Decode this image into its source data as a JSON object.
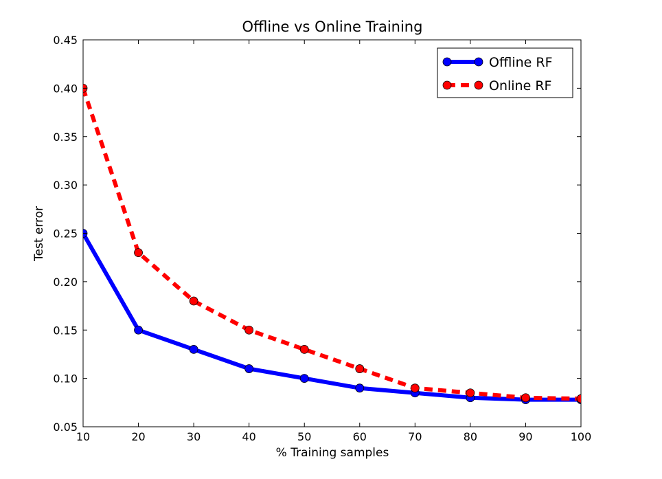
{
  "chart_data": {
    "type": "line",
    "title": "Offline vs Online Training",
    "xlabel": "% Training samples",
    "ylabel": "Test error",
    "x": [
      10,
      20,
      30,
      40,
      50,
      60,
      70,
      80,
      90,
      100
    ],
    "xlim": [
      10,
      100
    ],
    "ylim": [
      0.05,
      0.45
    ],
    "xticks": [
      "10",
      "20",
      "30",
      "40",
      "50",
      "60",
      "70",
      "80",
      "90",
      "100"
    ],
    "yticks": [
      "0.05",
      "0.10",
      "0.15",
      "0.20",
      "0.25",
      "0.30",
      "0.35",
      "0.40",
      "0.45"
    ],
    "grid": false,
    "legend_position": "top-right",
    "series": [
      {
        "name": "Offline RF",
        "color": "#0000ff",
        "line_style": "solid",
        "marker": "circle",
        "values": [
          0.25,
          0.15,
          0.13,
          0.11,
          0.1,
          0.09,
          0.085,
          0.08,
          0.078,
          0.078
        ]
      },
      {
        "name": "Online RF",
        "color": "#ff0000",
        "line_style": "dashed",
        "marker": "circle",
        "values": [
          0.4,
          0.23,
          0.18,
          0.15,
          0.13,
          0.11,
          0.09,
          0.085,
          0.08,
          0.079
        ]
      }
    ]
  }
}
